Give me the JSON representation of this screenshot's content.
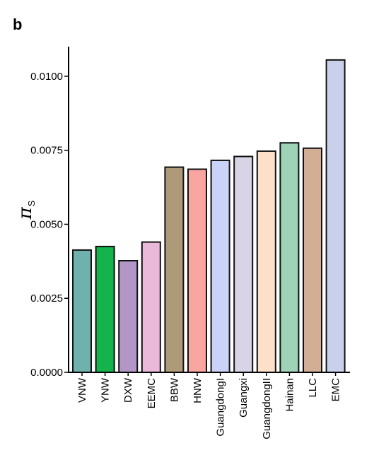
{
  "panel_label": "b",
  "chart_data": {
    "type": "bar",
    "title": "",
    "xlabel": "",
    "ylabel": "π",
    "ylabel_subscript": "S",
    "ylim": [
      0,
      0.011
    ],
    "yticks": [
      0.0,
      0.0025,
      0.005,
      0.0075,
      0.01
    ],
    "ytick_labels": [
      "0.0000",
      "0.0025",
      "0.0050",
      "0.0075",
      "0.0100"
    ],
    "categories": [
      "VNW",
      "YNW",
      "DXW",
      "EEMC",
      "BBW",
      "HNW",
      "GuangdongI",
      "Guangxi",
      "GuangdongII",
      "Hainan",
      "LLC",
      "EMC"
    ],
    "values": [
      0.00413,
      0.00425,
      0.00377,
      0.0044,
      0.00693,
      0.00686,
      0.00716,
      0.00729,
      0.00747,
      0.00775,
      0.00757,
      0.01055
    ],
    "colors": [
      "#6fb2ad",
      "#14b34b",
      "#b296c6",
      "#eab9da",
      "#ae9a78",
      "#fba5a1",
      "#cad3f7",
      "#d9d4e5",
      "#fde0c8",
      "#9fd3b7",
      "#d2ae94",
      "#c9d1ea"
    ],
    "grid": false,
    "legend": "none"
  }
}
